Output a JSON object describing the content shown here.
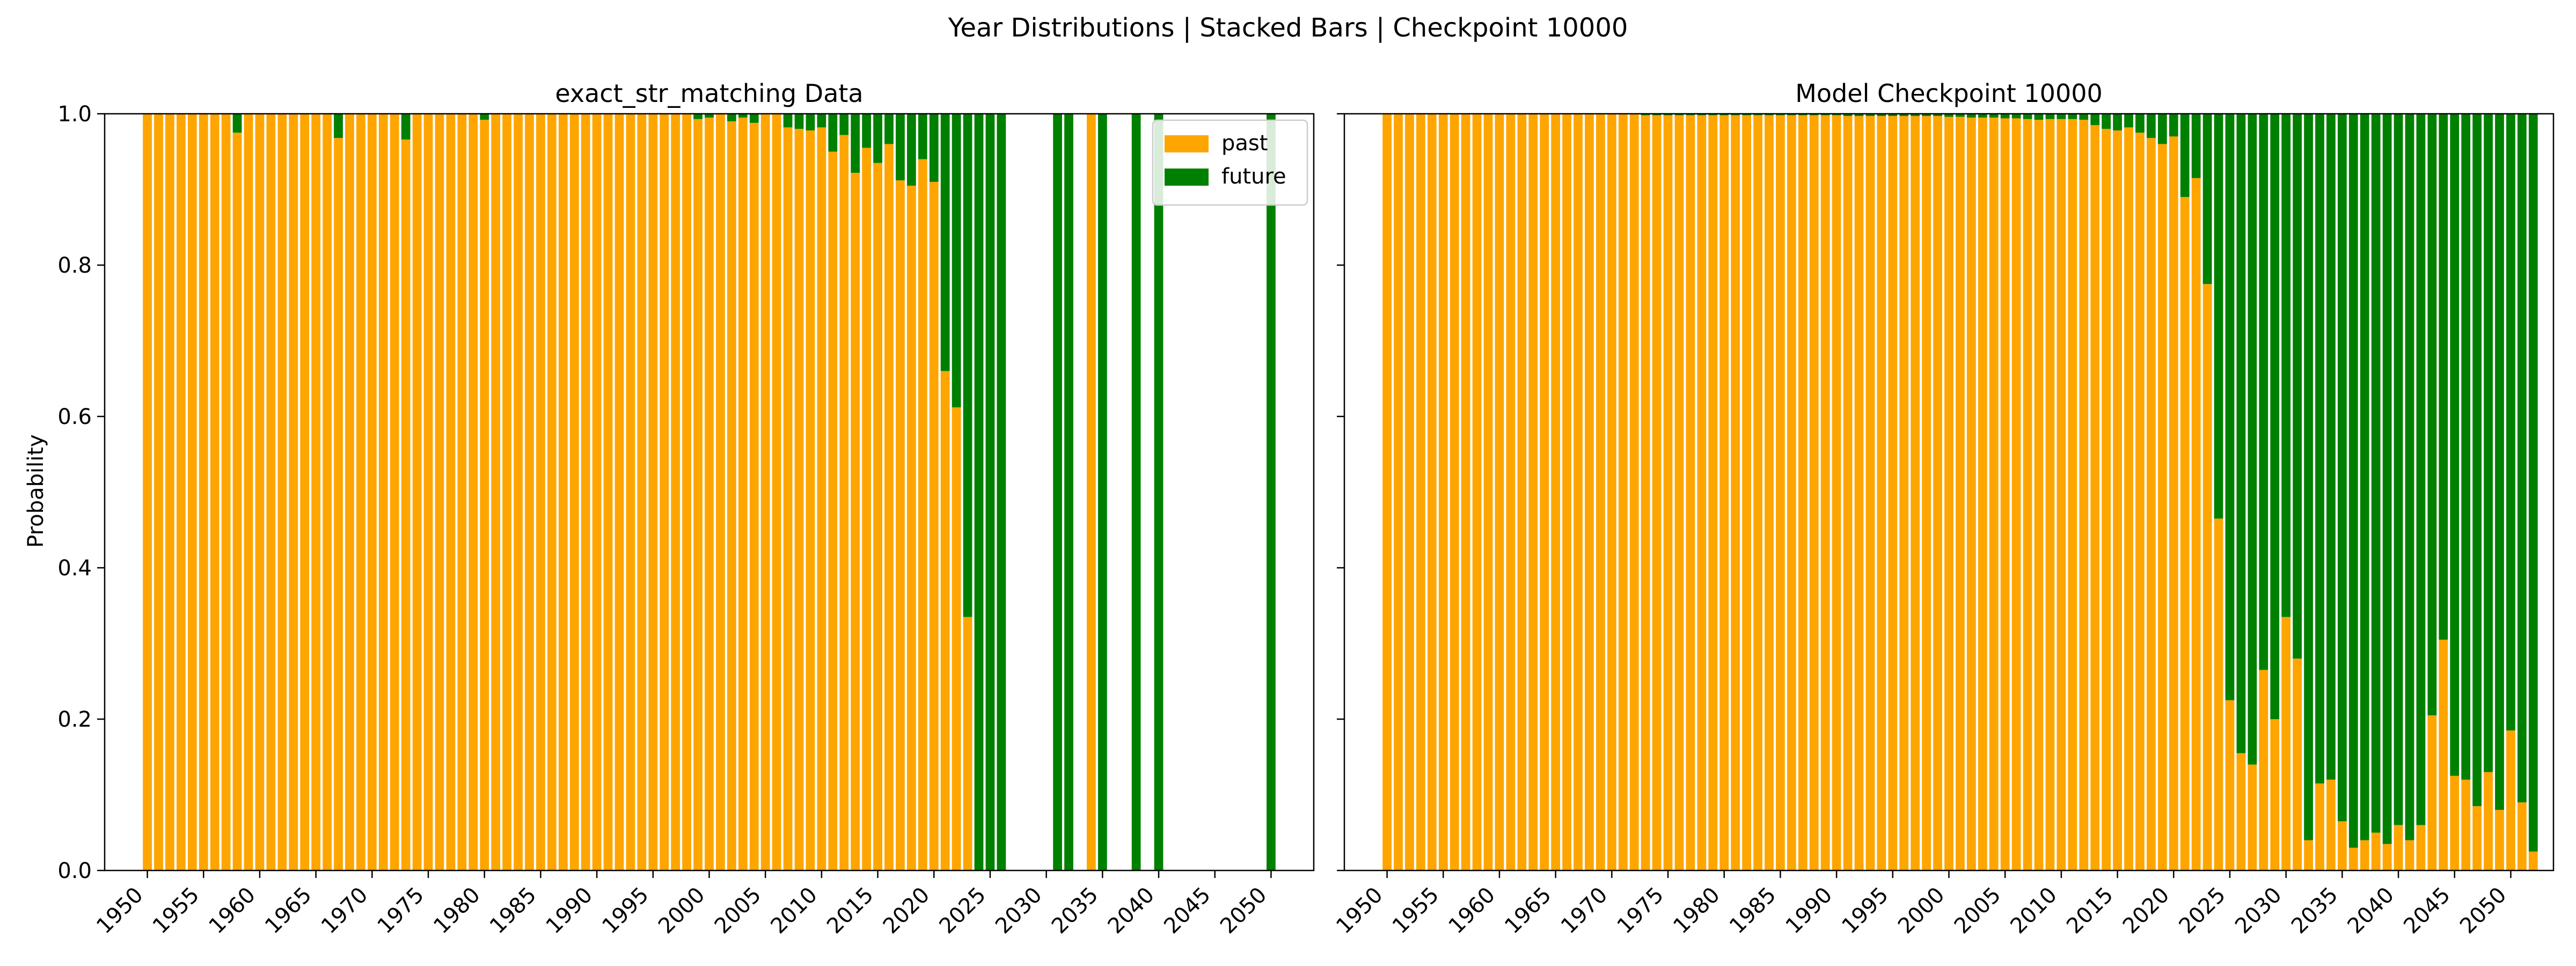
{
  "figure": {
    "title": "Year Distributions | Stacked Bars | Checkpoint 10000",
    "ylabel": "Probability"
  },
  "colors": {
    "past": "#ffa500",
    "future": "#008000"
  },
  "legend": {
    "placement": "top-right of first panel",
    "entries": [
      "past",
      "future"
    ]
  },
  "chart_data": [
    {
      "type": "bar",
      "stacked": true,
      "title": "exact_str_matching Data",
      "xlabel": "",
      "ylabel": "Probability",
      "ylim": [
        0,
        1
      ],
      "yticks": [
        0.0,
        0.2,
        0.4,
        0.6,
        0.8,
        1.0
      ],
      "xticks": [
        1950,
        1955,
        1960,
        1965,
        1970,
        1975,
        1980,
        1985,
        1990,
        1995,
        2000,
        2005,
        2010,
        2015,
        2020,
        2025,
        2030,
        2035,
        2040,
        2045,
        2050
      ],
      "years_start": 1950,
      "series": [
        {
          "name": "past",
          "values": [
            1,
            1,
            1,
            1,
            1,
            1,
            1,
            1,
            0.975,
            1,
            1,
            1,
            1,
            1,
            1,
            1,
            1,
            0.968,
            1,
            1,
            1,
            1,
            1,
            0.966,
            1,
            1,
            1,
            1,
            1,
            1,
            0.992,
            1,
            1,
            1,
            1,
            1,
            1,
            1,
            1,
            1,
            1,
            1,
            1,
            1,
            1,
            1,
            1,
            1,
            1,
            0.993,
            0.995,
            1,
            0.99,
            0.995,
            0.988,
            1,
            1,
            0.982,
            0.98,
            0.978,
            0.982,
            0.95,
            0.972,
            0.922,
            0.955,
            0.935,
            0.96,
            0.912,
            0.905,
            0.94,
            0.91,
            0.66,
            0.612,
            0.335,
            0,
            0,
            0,
            0,
            0,
            0,
            0,
            0,
            0,
            0,
            1,
            0,
            0,
            0,
            0,
            0,
            0,
            0,
            0,
            0,
            0,
            0,
            0,
            0,
            0,
            0,
            0
          ]
        },
        {
          "name": "future",
          "values": [
            0,
            0,
            0,
            0,
            0,
            0,
            0,
            0,
            0.025,
            0,
            0,
            0,
            0,
            0,
            0,
            0,
            0,
            0.032,
            0,
            0,
            0,
            0,
            0,
            0.034,
            0,
            0,
            0,
            0,
            0,
            0,
            0.008,
            0,
            0,
            0,
            0,
            0,
            0,
            0,
            0,
            0,
            0,
            0,
            0,
            0,
            0,
            0,
            0,
            0,
            0,
            0.007,
            0.005,
            0,
            0.01,
            0.005,
            0.012,
            0,
            0,
            0.018,
            0.02,
            0.022,
            0.018,
            0.05,
            0.028,
            0.078,
            0.045,
            0.065,
            0.04,
            0.088,
            0.095,
            0.06,
            0.09,
            0.34,
            0.388,
            0.665,
            1,
            1,
            1,
            0,
            0,
            0,
            0,
            1,
            1,
            0,
            0,
            1,
            0,
            0,
            1,
            0,
            1,
            0,
            0,
            0,
            0,
            0,
            0,
            0,
            0,
            0,
            1
          ]
        }
      ]
    },
    {
      "type": "bar",
      "stacked": true,
      "title": "Model Checkpoint 10000",
      "xlabel": "",
      "ylim": [
        0,
        1
      ],
      "yticks": [
        0.0,
        0.2,
        0.4,
        0.6,
        0.8,
        1.0
      ],
      "xticks": [
        1950,
        1955,
        1960,
        1965,
        1970,
        1975,
        1980,
        1985,
        1990,
        1995,
        2000,
        2005,
        2010,
        2015,
        2020,
        2025,
        2030,
        2035,
        2040,
        2045,
        2050
      ],
      "years_start": 1950,
      "series": [
        {
          "name": "past",
          "values": [
            1,
            1,
            1,
            1,
            1,
            1,
            1,
            1,
            1,
            1,
            1,
            1,
            1,
            1,
            1,
            1,
            1,
            1,
            1,
            1,
            1,
            1,
            1,
            0.998,
            0.998,
            0.998,
            0.998,
            0.998,
            0.998,
            0.998,
            0.998,
            0.998,
            0.998,
            0.998,
            0.998,
            0.998,
            0.998,
            0.998,
            0.998,
            0.998,
            0.998,
            0.997,
            0.997,
            0.997,
            0.997,
            0.997,
            0.997,
            0.997,
            0.997,
            0.997,
            0.996,
            0.996,
            0.995,
            0.995,
            0.995,
            0.994,
            0.994,
            0.993,
            0.992,
            0.993,
            0.993,
            0.993,
            0.992,
            0.985,
            0.98,
            0.978,
            0.982,
            0.975,
            0.968,
            0.96,
            0.97,
            0.89,
            0.915,
            0.775,
            0.465,
            0.225,
            0.155,
            0.14,
            0.265,
            0.2,
            0.335,
            0.28,
            0.04,
            0.115,
            0.12,
            0.065,
            0.03,
            0.04,
            0.05,
            0.035,
            0.06,
            0.04,
            0.06,
            0.205,
            0.305,
            0.125,
            0.12,
            0.085,
            0.13,
            0.08,
            0.185,
            0.09,
            0.025
          ]
        },
        {
          "name": "future",
          "values": [
            0,
            0,
            0,
            0,
            0,
            0,
            0,
            0,
            0,
            0,
            0,
            0,
            0,
            0,
            0,
            0,
            0,
            0,
            0,
            0,
            0,
            0,
            0,
            0.002,
            0.002,
            0.002,
            0.002,
            0.002,
            0.002,
            0.002,
            0.002,
            0.002,
            0.002,
            0.002,
            0.002,
            0.002,
            0.002,
            0.002,
            0.002,
            0.002,
            0.002,
            0.003,
            0.003,
            0.003,
            0.003,
            0.003,
            0.003,
            0.003,
            0.003,
            0.003,
            0.004,
            0.004,
            0.005,
            0.005,
            0.005,
            0.006,
            0.006,
            0.007,
            0.008,
            0.007,
            0.007,
            0.007,
            0.008,
            0.015,
            0.02,
            0.022,
            0.018,
            0.025,
            0.032,
            0.04,
            0.03,
            0.11,
            0.085,
            0.225,
            0.535,
            0.775,
            0.845,
            0.86,
            0.735,
            0.8,
            0.665,
            0.72,
            0.96,
            0.885,
            0.88,
            0.935,
            0.97,
            0.96,
            0.95,
            0.965,
            0.94,
            0.96,
            0.94,
            0.795,
            0.695,
            0.875,
            0.88,
            0.915,
            0.87,
            0.92,
            0.815,
            0.91,
            0.975
          ]
        }
      ]
    }
  ]
}
